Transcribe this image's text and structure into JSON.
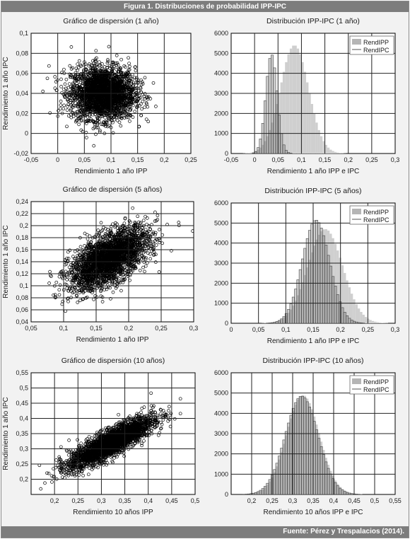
{
  "figure_title": "Figura 1. Distribuciones de probabilidad IPP-IPC",
  "source_note": "Fuente: Pérez y Trespalacios (2014).",
  "colors": {
    "banner": "#7d7d7d",
    "panel": "#f2f2f2",
    "plot_bg": "#ffffff",
    "grid": "#222222",
    "ipp_fill": "#cfcfcf",
    "ipc_fill": "#b5b5b5",
    "points": "#000000"
  },
  "chart_data": [
    {
      "type": "scatter",
      "title": "Gráfico de dispersión (1 año)",
      "xlabel": "Rendimiento 1 año IPP",
      "ylabel": "Rendimiento 1 año IPC",
      "xlim": [
        -0.05,
        0.25
      ],
      "ylim": [
        -0.02,
        0.1
      ],
      "xticks": [
        "-0,05",
        "0",
        "0,05",
        "0,1",
        "0,15",
        "0,2",
        "0,25"
      ],
      "yticks": [
        "-0,02",
        "0",
        "0,02",
        "0,04",
        "0,06",
        "0,08",
        "0,1"
      ],
      "distribution": {
        "x_mean": 0.085,
        "y_mean": 0.04,
        "x_sd": 0.03,
        "y_sd": 0.013,
        "correlation": 0.0
      },
      "grid": true
    },
    {
      "type": "bar",
      "title": "Distribución IPP-IPC (1 año)",
      "xlabel": "Rendimiento 1 año IPP e IPC",
      "ylabel": "",
      "xlim": [
        -0.05,
        0.3
      ],
      "ylim": [
        0,
        6000
      ],
      "xticks": [
        "-0,05",
        "0",
        "0,05",
        "0,1",
        "0,15",
        "0,2",
        "0,25",
        "0,3"
      ],
      "yticks": [
        "0",
        "1000",
        "2000",
        "3000",
        "4000",
        "5000",
        "6000"
      ],
      "legend": "top-right",
      "series": [
        {
          "name": "RendIPP",
          "mean": 0.085,
          "peak": 5400,
          "sd": 0.03
        },
        {
          "name": "RendIPC",
          "mean": 0.036,
          "peak": 4950,
          "sd": 0.012
        }
      ],
      "grid": true
    },
    {
      "type": "scatter",
      "title": "Gráfico de dispersión (5 años)",
      "xlabel": "Rendimiento 1 año IPP",
      "ylabel": "Rendimiento 1 año IPC",
      "xlim": [
        0.05,
        0.3
      ],
      "ylim": [
        0.04,
        0.24
      ],
      "xticks": [
        "0,05",
        "0,1",
        "0,15",
        "0,2",
        "0,25",
        "0,3"
      ],
      "yticks": [
        "0,04",
        "0,06",
        "0,08",
        "0,1",
        "0,12",
        "0,14",
        "0,16",
        "0,18",
        "0,2",
        "0,22",
        "0,24"
      ],
      "distribution": {
        "x_mean": 0.17,
        "y_mean": 0.145,
        "x_sd": 0.03,
        "y_sd": 0.025,
        "correlation": 0.6
      },
      "grid": true
    },
    {
      "type": "bar",
      "title": "Distribución IPP-IPC (5 años)",
      "xlabel": "Rendimiento 1 año IPP e IPC",
      "ylabel": "",
      "xlim": [
        0,
        0.3
      ],
      "ylim": [
        0,
        6000
      ],
      "xticks": [
        "0",
        "0,05",
        "0,1",
        "0,15",
        "0,2",
        "0,25",
        "0,3"
      ],
      "yticks": [
        "0",
        "1000",
        "2000",
        "3000",
        "4000",
        "5000",
        "6000"
      ],
      "legend": "top-right",
      "series": [
        {
          "name": "RendIPP",
          "mean": 0.172,
          "peak": 4700,
          "sd": 0.032
        },
        {
          "name": "RendIPC",
          "mean": 0.155,
          "peak": 5150,
          "sd": 0.025
        }
      ],
      "grid": true
    },
    {
      "type": "scatter",
      "title": "Gráfico de dispersión (10 años)",
      "xlabel": "Rendimiento 10 años IPP",
      "ylabel": "Rendimiento 1 año IPC",
      "xlim": [
        0.15,
        0.5
      ],
      "ylim": [
        0.15,
        0.55
      ],
      "xticks": [
        "0,2",
        "0,25",
        "0,3",
        "0,35",
        "0,4",
        "0,45",
        "0,5"
      ],
      "yticks": [
        "0,2",
        "0,25",
        "0,3",
        "0,35",
        "0,4",
        "0,45",
        "0,5",
        "0,55"
      ],
      "distribution": {
        "x_mean": 0.32,
        "y_mean": 0.32,
        "x_sd": 0.045,
        "y_sd": 0.042,
        "correlation": 0.85
      },
      "grid": true
    },
    {
      "type": "bar",
      "title": "Distribución IPP-IPC (10 años)",
      "xlabel": "Rendimiento 10 años IPP e IPC",
      "ylabel": "",
      "xlim": [
        0.15,
        0.55
      ],
      "ylim": [
        0,
        6000
      ],
      "xticks": [
        "0,2",
        "0,25",
        "0,3",
        "0,35",
        "0,4",
        "0,45",
        "0,5",
        "0,55"
      ],
      "yticks": [
        "0",
        "1000",
        "2000",
        "3000",
        "4000",
        "5000",
        "6000"
      ],
      "legend": "top-right",
      "series": [
        {
          "name": "RendIPP",
          "mean": 0.325,
          "peak": 4900,
          "sd": 0.04
        },
        {
          "name": "RendIPC",
          "mean": 0.322,
          "peak": 4850,
          "sd": 0.04
        }
      ],
      "grid": true
    }
  ]
}
